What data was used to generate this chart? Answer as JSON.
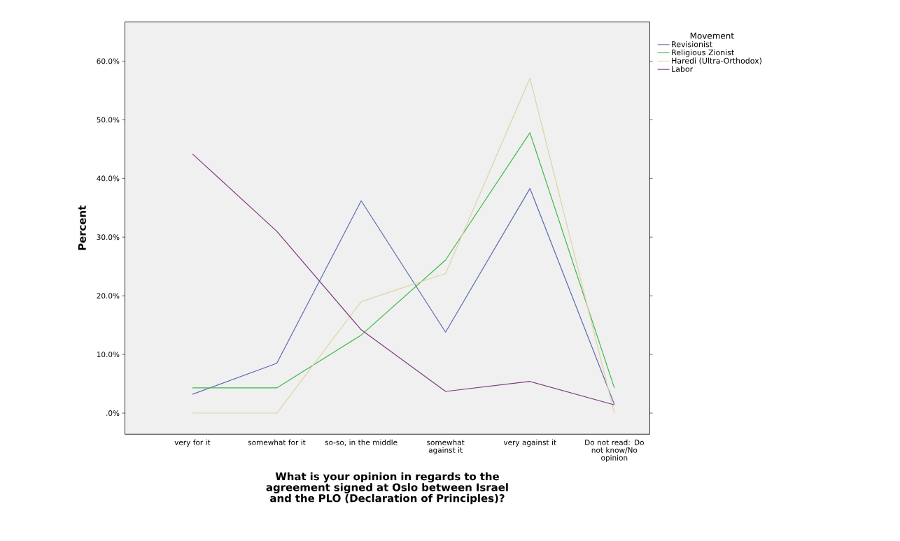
{
  "chart_data": {
    "type": "line",
    "xlabel": "What is your opinion in regards to the agreement signed at Oslo between Israel and the PLO (Declaration of Principles)?",
    "ylabel": "Percent",
    "legend_title": "Movement",
    "categories": [
      "very for it",
      "somewhat for it",
      "so-so, in the middle",
      "somewhat against it",
      "very against it",
      "Do not read:  Do not know/No opinion"
    ],
    "series": [
      {
        "name": "Revisionist",
        "color": "#5a6bb0",
        "values": [
          3.2,
          8.5,
          36.2,
          13.8,
          38.3,
          1.5
        ]
      },
      {
        "name": "Religious Zionist",
        "color": "#3fb84a",
        "values": [
          4.3,
          4.3,
          13.3,
          26.1,
          47.8,
          4.3
        ]
      },
      {
        "name": "Haredi (Ultra-Orthodox)",
        "color": "#ddd3a4",
        "values": [
          0,
          0,
          19.0,
          23.8,
          57.1,
          0
        ]
      },
      {
        "name": "Labor",
        "color": "#7b3a7e",
        "values": [
          44.2,
          31.0,
          14.2,
          3.7,
          5.4,
          1.4
        ]
      }
    ],
    "ylim": [
      -3.6,
      66.7
    ],
    "yticks": [
      {
        "value": 0,
        "label": ".0%"
      },
      {
        "value": 10,
        "label": "10.0%"
      },
      {
        "value": 20,
        "label": "20.0%"
      },
      {
        "value": 30,
        "label": "30.0%"
      },
      {
        "value": 40,
        "label": "40.0%"
      },
      {
        "value": 50,
        "label": "50.0%"
      },
      {
        "value": 60,
        "label": "60.0%"
      }
    ],
    "legend": "top right",
    "grid": false,
    "marker": "none",
    "line_style": "solid"
  }
}
